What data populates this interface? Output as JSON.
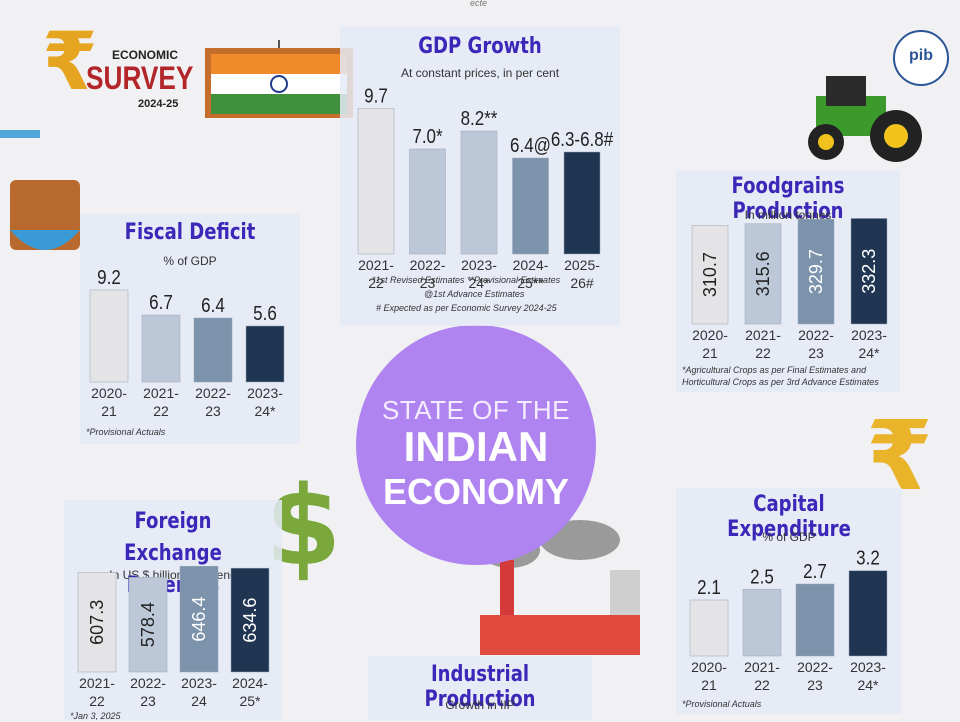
{
  "top_note": "ecte",
  "logo": {
    "symbol": "₹",
    "line1": "ECONOMIC",
    "line2": "SURVEY",
    "line3": "2024-25",
    "badge": "pib"
  },
  "center": {
    "line1": "STATE OF THE",
    "line2": "INDIAN",
    "line3": "ECONOMY"
  },
  "colors": {
    "light": "#e4e4e6",
    "mid1": "#bcc8d8",
    "mid2": "#7d92ab",
    "dark": "#1f3552",
    "title": "#3b27b8",
    "circle": "#b084f0"
  },
  "chart_data": [
    {
      "id": "gdp",
      "type": "bar",
      "title": "GDP Growth",
      "subtitle": "At constant prices, in per cent",
      "categories": [
        [
          "2021-",
          "22"
        ],
        [
          "2022-",
          "23"
        ],
        [
          "2023-",
          "24*"
        ],
        [
          "2024-",
          "25**"
        ],
        [
          "2025-",
          "26#"
        ]
      ],
      "values": [
        9.7,
        7.0,
        8.2,
        6.4,
        6.8
      ],
      "labels": [
        "9.7",
        "7.0*",
        "8.2**",
        "6.4@",
        "6.3-6.8#"
      ],
      "ylim": [
        0,
        10
      ],
      "notes": [
        "*1st Revised Estimates **Provisional Estimates",
        "@1st Advance Estimates",
        "# Expected as per Economic Survey 2024-25"
      ]
    },
    {
      "id": "fiscal",
      "type": "bar",
      "title": "Fiscal Deficit",
      "subtitle": "% of GDP",
      "categories": [
        [
          "2020-",
          "21"
        ],
        [
          "2021-",
          "22"
        ],
        [
          "2022-",
          "23"
        ],
        [
          "2023-",
          "24*"
        ]
      ],
      "values": [
        9.2,
        6.7,
        6.4,
        5.6
      ],
      "labels": [
        "9.2",
        "6.7",
        "6.4",
        "5.6"
      ],
      "ylim": [
        0,
        10
      ],
      "notes": [
        "*Provisional Actuals"
      ]
    },
    {
      "id": "foodgrains",
      "type": "bar",
      "title": "Foodgrains Production",
      "subtitle": "In million tonnes",
      "categories": [
        [
          "2020-",
          "21"
        ],
        [
          "2021-",
          "22"
        ],
        [
          "2022-",
          "23"
        ],
        [
          "2023-",
          "24*"
        ]
      ],
      "values": [
        310.7,
        315.6,
        329.7,
        332.3
      ],
      "labels": [
        "310.7",
        "315.6",
        "329.7",
        "332.3"
      ],
      "ylim": [
        0,
        340
      ],
      "notes": [
        "*Agricultural Crops as per Final Estimates and",
        "Horticultural Crops as per 3rd Advance Estimates"
      ]
    },
    {
      "id": "forex",
      "type": "bar",
      "title": "Foreign Exchange Reserves",
      "subtitle": "In US $ billion, year end",
      "categories": [
        [
          "2021-",
          "22"
        ],
        [
          "2022-",
          "23"
        ],
        [
          "2023-",
          "24"
        ],
        [
          "2024-",
          "25*"
        ]
      ],
      "values": [
        607.3,
        578.4,
        646.4,
        634.6
      ],
      "labels": [
        "607.3",
        "578.4",
        "646.4",
        "634.6"
      ],
      "ylim": [
        0,
        660
      ],
      "notes": [
        "*Jan 3, 2025"
      ]
    },
    {
      "id": "capex",
      "type": "bar",
      "title": "Capital Expenditure",
      "subtitle": "% of GDP",
      "categories": [
        [
          "2020-",
          "21"
        ],
        [
          "2021-",
          "22"
        ],
        [
          "2022-",
          "23"
        ],
        [
          "2023-",
          "24*"
        ]
      ],
      "values": [
        2.1,
        2.5,
        2.7,
        3.2
      ],
      "labels": [
        "2.1",
        "2.5",
        "2.7",
        "3.2"
      ],
      "ylim": [
        0,
        3.6
      ],
      "notes": [
        "*Provisional Actuals"
      ]
    },
    {
      "id": "iip",
      "type": "bar",
      "title": "Industrial Production",
      "subtitle": "Growth in IIP",
      "categories": [],
      "values": [],
      "labels": [],
      "notes": []
    }
  ]
}
